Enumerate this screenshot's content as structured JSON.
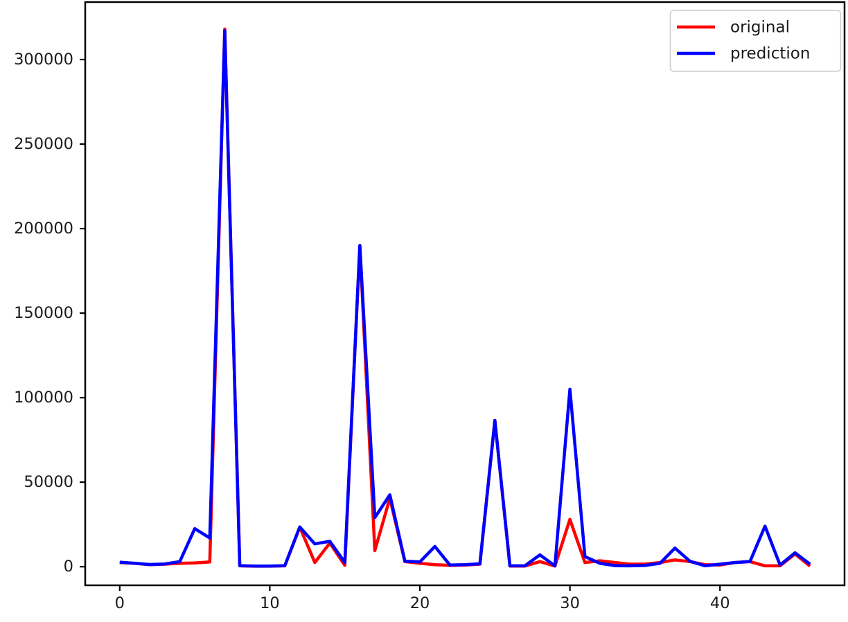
{
  "figure": {
    "background": "#ffffff"
  },
  "chart_data": {
    "type": "line",
    "title": "",
    "xlabel": "",
    "ylabel": "",
    "grid": false,
    "x": [
      0,
      1,
      2,
      3,
      4,
      5,
      6,
      7,
      8,
      9,
      10,
      11,
      12,
      13,
      14,
      15,
      16,
      17,
      18,
      19,
      20,
      21,
      22,
      23,
      24,
      25,
      26,
      27,
      28,
      29,
      30,
      31,
      32,
      33,
      34,
      35,
      36,
      37,
      38,
      39,
      40,
      41,
      42,
      43,
      44,
      45,
      46
    ],
    "series": [
      {
        "name": "original",
        "color": "#ff0000",
        "values": [
          2500,
          2000,
          1200,
          1500,
          2000,
          2200,
          2800,
          318000,
          500,
          300,
          300,
          500,
          23500,
          2500,
          14000,
          800,
          190000,
          9500,
          40500,
          3000,
          2000,
          1200,
          800,
          1000,
          1500,
          86500,
          400,
          400,
          3000,
          400,
          28000,
          2500,
          3500,
          2500,
          1500,
          1500,
          2500,
          4000,
          3000,
          1200,
          1000,
          2500,
          3000,
          500,
          500,
          7500,
          300
        ]
      },
      {
        "name": "prediction",
        "color": "#0000ff",
        "values": [
          2700,
          2000,
          1300,
          1600,
          3000,
          22500,
          17000,
          317000,
          600,
          400,
          400,
          600,
          23500,
          13500,
          15000,
          2500,
          190000,
          29000,
          42500,
          3200,
          2800,
          12000,
          1000,
          1200,
          1700,
          86500,
          500,
          500,
          7000,
          500,
          105000,
          6000,
          2000,
          600,
          500,
          700,
          2000,
          11000,
          3200,
          500,
          1500,
          2500,
          3000,
          24000,
          1000,
          8200,
          1500
        ]
      }
    ],
    "x_ticks": [
      0,
      10,
      20,
      30,
      40
    ],
    "y_ticks": [
      0,
      50000,
      100000,
      150000,
      200000,
      250000,
      300000
    ],
    "xlim": [
      -2.3,
      48.3
    ],
    "ylim": [
      -11000,
      334000
    ],
    "legend": {
      "position": "upper right",
      "entries": [
        "original",
        "prediction"
      ]
    }
  },
  "legend": {
    "items": [
      {
        "label": "original",
        "color": "#ff0000"
      },
      {
        "label": "prediction",
        "color": "#0000ff"
      }
    ]
  }
}
